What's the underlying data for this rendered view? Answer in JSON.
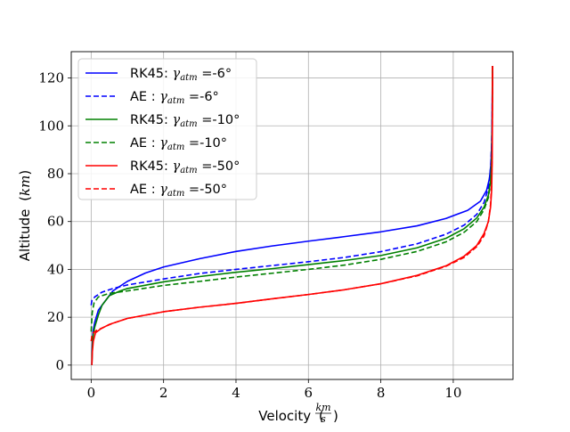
{
  "chart_data": {
    "type": "line",
    "xlabel": "Velocity",
    "xlabel_unit_num": "km",
    "xlabel_unit_den": "s",
    "ylabel": "Altitude",
    "ylabel_unit": "km",
    "xlim": [
      -0.55,
      11.65
    ],
    "ylim": [
      -6,
      131
    ],
    "xticks": [
      0,
      2,
      4,
      6,
      8,
      10
    ],
    "yticks": [
      0,
      20,
      40,
      60,
      80,
      100,
      120
    ],
    "grid": true,
    "legend_position": "top-left",
    "series": [
      {
        "name": "RK45:",
        "gamma_value": "-6°",
        "color": "#0000ff",
        "style": "solid",
        "points": [
          [
            0.02,
            0
          ],
          [
            0.03,
            8
          ],
          [
            0.05,
            14
          ],
          [
            0.1,
            18
          ],
          [
            0.2,
            23
          ],
          [
            0.35,
            26
          ],
          [
            0.6,
            31
          ],
          [
            1.0,
            35
          ],
          [
            1.5,
            38.5
          ],
          [
            2,
            41
          ],
          [
            3,
            44.5
          ],
          [
            4,
            47.5
          ],
          [
            5,
            49.8
          ],
          [
            6,
            51.8
          ],
          [
            7,
            53.7
          ],
          [
            8,
            55.7
          ],
          [
            9,
            58.2
          ],
          [
            9.8,
            61.3
          ],
          [
            10.4,
            64.7
          ],
          [
            10.75,
            68.5
          ],
          [
            10.92,
            73
          ],
          [
            11.0,
            78
          ],
          [
            11.04,
            84
          ],
          [
            11.06,
            92
          ],
          [
            11.07,
            100
          ],
          [
            11.075,
            110
          ],
          [
            11.08,
            118
          ],
          [
            11.08,
            125
          ]
        ]
      },
      {
        "name": "AE :",
        "gamma_value": "-6°",
        "color": "#0000ff",
        "style": "dashed",
        "points": [
          [
            0.0,
            25
          ],
          [
            0.02,
            27
          ],
          [
            0.1,
            28.5
          ],
          [
            0.3,
            30.5
          ],
          [
            0.6,
            32
          ],
          [
            1,
            33.5
          ],
          [
            2,
            36
          ],
          [
            3,
            38.3
          ],
          [
            4,
            40
          ],
          [
            5,
            41.6
          ],
          [
            6,
            43.2
          ],
          [
            7,
            45
          ],
          [
            8,
            47.4
          ],
          [
            9,
            50.7
          ],
          [
            9.8,
            54.7
          ],
          [
            10.3,
            58.5
          ],
          [
            10.65,
            63
          ],
          [
            10.85,
            68
          ],
          [
            10.97,
            74
          ],
          [
            11.03,
            82
          ],
          [
            11.06,
            92
          ],
          [
            11.075,
            105
          ],
          [
            11.08,
            115
          ],
          [
            11.08,
            125
          ]
        ]
      },
      {
        "name": "RK45:",
        "gamma_value": "-10°",
        "color": "#008000",
        "style": "solid",
        "points": [
          [
            0.02,
            0
          ],
          [
            0.03,
            6
          ],
          [
            0.05,
            12
          ],
          [
            0.1,
            16
          ],
          [
            0.2,
            21
          ],
          [
            0.3,
            25
          ],
          [
            0.5,
            29
          ],
          [
            0.8,
            31
          ],
          [
            1,
            32
          ],
          [
            2,
            34.8
          ],
          [
            3,
            37
          ],
          [
            4,
            38.8
          ],
          [
            5,
            40.3
          ],
          [
            6,
            42
          ],
          [
            7,
            43.7
          ],
          [
            8,
            45.8
          ],
          [
            9,
            49
          ],
          [
            9.8,
            53
          ],
          [
            10.3,
            57
          ],
          [
            10.65,
            61.5
          ],
          [
            10.85,
            66
          ],
          [
            10.97,
            71
          ],
          [
            11.03,
            77
          ],
          [
            11.06,
            85
          ],
          [
            11.075,
            95
          ],
          [
            11.08,
            110
          ],
          [
            11.08,
            125
          ]
        ]
      },
      {
        "name": "AE :",
        "gamma_value": "-10°",
        "color": "#008000",
        "style": "dashed",
        "points": [
          [
            0.0,
            14
          ],
          [
            0.01,
            17
          ],
          [
            0.03,
            22
          ],
          [
            0.08,
            26
          ],
          [
            0.2,
            28.5
          ],
          [
            0.5,
            30
          ],
          [
            1,
            31
          ],
          [
            2,
            33.3
          ],
          [
            3,
            35
          ],
          [
            4,
            36.8
          ],
          [
            5,
            38.4
          ],
          [
            6,
            40
          ],
          [
            7,
            41.8
          ],
          [
            8,
            44.2
          ],
          [
            9,
            47.5
          ],
          [
            9.8,
            51.5
          ],
          [
            10.3,
            55.5
          ],
          [
            10.65,
            60
          ],
          [
            10.85,
            65
          ],
          [
            10.97,
            70
          ],
          [
            11.03,
            76
          ],
          [
            11.06,
            85
          ],
          [
            11.075,
            98
          ],
          [
            11.08,
            112
          ],
          [
            11.08,
            125
          ]
        ]
      },
      {
        "name": "RK45:",
        "gamma_value": "-50°",
        "color": "#ff0000",
        "style": "solid",
        "points": [
          [
            0.02,
            0
          ],
          [
            0.03,
            5
          ],
          [
            0.06,
            10
          ],
          [
            0.12,
            13.5
          ],
          [
            0.25,
            15
          ],
          [
            0.5,
            17
          ],
          [
            1,
            19.5
          ],
          [
            2,
            22.3
          ],
          [
            3,
            24.2
          ],
          [
            4,
            25.8
          ],
          [
            5,
            27.7
          ],
          [
            6,
            29.5
          ],
          [
            7,
            31.5
          ],
          [
            8,
            34
          ],
          [
            9,
            37.5
          ],
          [
            9.8,
            41.5
          ],
          [
            10.3,
            45.5
          ],
          [
            10.65,
            50
          ],
          [
            10.85,
            55
          ],
          [
            10.97,
            60
          ],
          [
            11.03,
            66
          ],
          [
            11.06,
            73
          ],
          [
            11.075,
            85
          ],
          [
            11.08,
            100
          ],
          [
            11.085,
            115
          ],
          [
            11.085,
            125
          ]
        ]
      },
      {
        "name": "AE :",
        "gamma_value": "-50°",
        "color": "#ff0000",
        "style": "dashed",
        "points": [
          [
            0.0,
            10
          ],
          [
            0.02,
            12
          ],
          [
            0.06,
            13.5
          ],
          [
            0.15,
            14.5
          ],
          [
            0.3,
            15.5
          ],
          [
            0.6,
            17.5
          ],
          [
            1,
            19.5
          ],
          [
            2,
            22.3
          ],
          [
            3,
            24.2
          ],
          [
            4,
            25.8
          ],
          [
            5,
            27.7
          ],
          [
            6,
            29.5
          ],
          [
            7,
            31.5
          ],
          [
            8,
            34
          ],
          [
            9,
            37.3
          ],
          [
            9.8,
            41.3
          ],
          [
            10.3,
            45
          ],
          [
            10.65,
            49.5
          ],
          [
            10.85,
            54
          ],
          [
            10.97,
            60
          ],
          [
            11.03,
            67
          ],
          [
            11.06,
            76
          ],
          [
            11.075,
            90
          ],
          [
            11.08,
            105
          ],
          [
            11.085,
            118
          ],
          [
            11.085,
            125
          ]
        ]
      }
    ]
  }
}
